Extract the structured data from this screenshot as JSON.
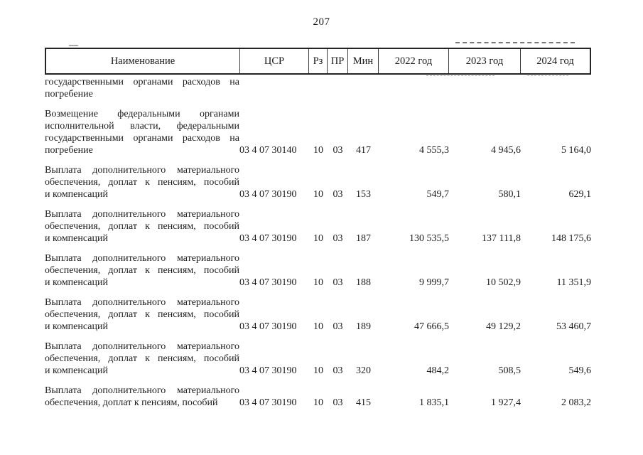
{
  "page": {
    "number": "207"
  },
  "table": {
    "headers": {
      "name": "Наименование",
      "csr": "ЦСР",
      "rz": "Рз",
      "pr": "ПР",
      "min": "Мин",
      "y2022": "2022 год",
      "y2023": "2023 год",
      "y2024": "2024 год"
    },
    "rows": [
      {
        "name": "государственными органами расходов на погребение",
        "csr": "",
        "rz": "",
        "pr": "",
        "min": "",
        "y2022": "",
        "y2023": "",
        "y2024": ""
      },
      {
        "name": "Возмещение федеральными органами исполнительной власти, федеральными государственными органами расходов на погребение",
        "csr": "03 4 07 30140",
        "rz": "10",
        "pr": "03",
        "min": "417",
        "y2022": "4 555,3",
        "y2023": "4 945,6",
        "y2024": "5 164,0"
      },
      {
        "name": "Выплата дополнительного материального обеспечения, доплат к пенсиям, пособий и компенсаций",
        "csr": "03 4 07 30190",
        "rz": "10",
        "pr": "03",
        "min": "153",
        "y2022": "549,7",
        "y2023": "580,1",
        "y2024": "629,1"
      },
      {
        "name": "Выплата дополнительного материального обеспечения, доплат к пенсиям, пособий и компенсаций",
        "csr": "03 4 07 30190",
        "rz": "10",
        "pr": "03",
        "min": "187",
        "y2022": "130 535,5",
        "y2023": "137 111,8",
        "y2024": "148 175,6"
      },
      {
        "name": "Выплата дополнительного материального обеспечения, доплат к пенсиям, пособий и компенсаций",
        "csr": "03 4 07 30190",
        "rz": "10",
        "pr": "03",
        "min": "188",
        "y2022": "9 999,7",
        "y2023": "10 502,9",
        "y2024": "11 351,9"
      },
      {
        "name": "Выплата дополнительного материального обеспечения, доплат к пенсиям, пособий и компенсаций",
        "csr": "03 4 07 30190",
        "rz": "10",
        "pr": "03",
        "min": "189",
        "y2022": "47 666,5",
        "y2023": "49 129,2",
        "y2024": "53 460,7"
      },
      {
        "name": "Выплата дополнительного материального обеспечения, доплат к пенсиям, пособий и компенсаций",
        "csr": "03 4 07 30190",
        "rz": "10",
        "pr": "03",
        "min": "320",
        "y2022": "484,2",
        "y2023": "508,5",
        "y2024": "549,6"
      },
      {
        "name": "Выплата дополнительного материального обеспечения, доплат к пенсиям, пособий",
        "csr": "03 4 07 30190",
        "rz": "10",
        "pr": "03",
        "min": "415",
        "y2022": "1 835,1",
        "y2023": "1 927,4",
        "y2024": "2 083,2"
      }
    ]
  }
}
